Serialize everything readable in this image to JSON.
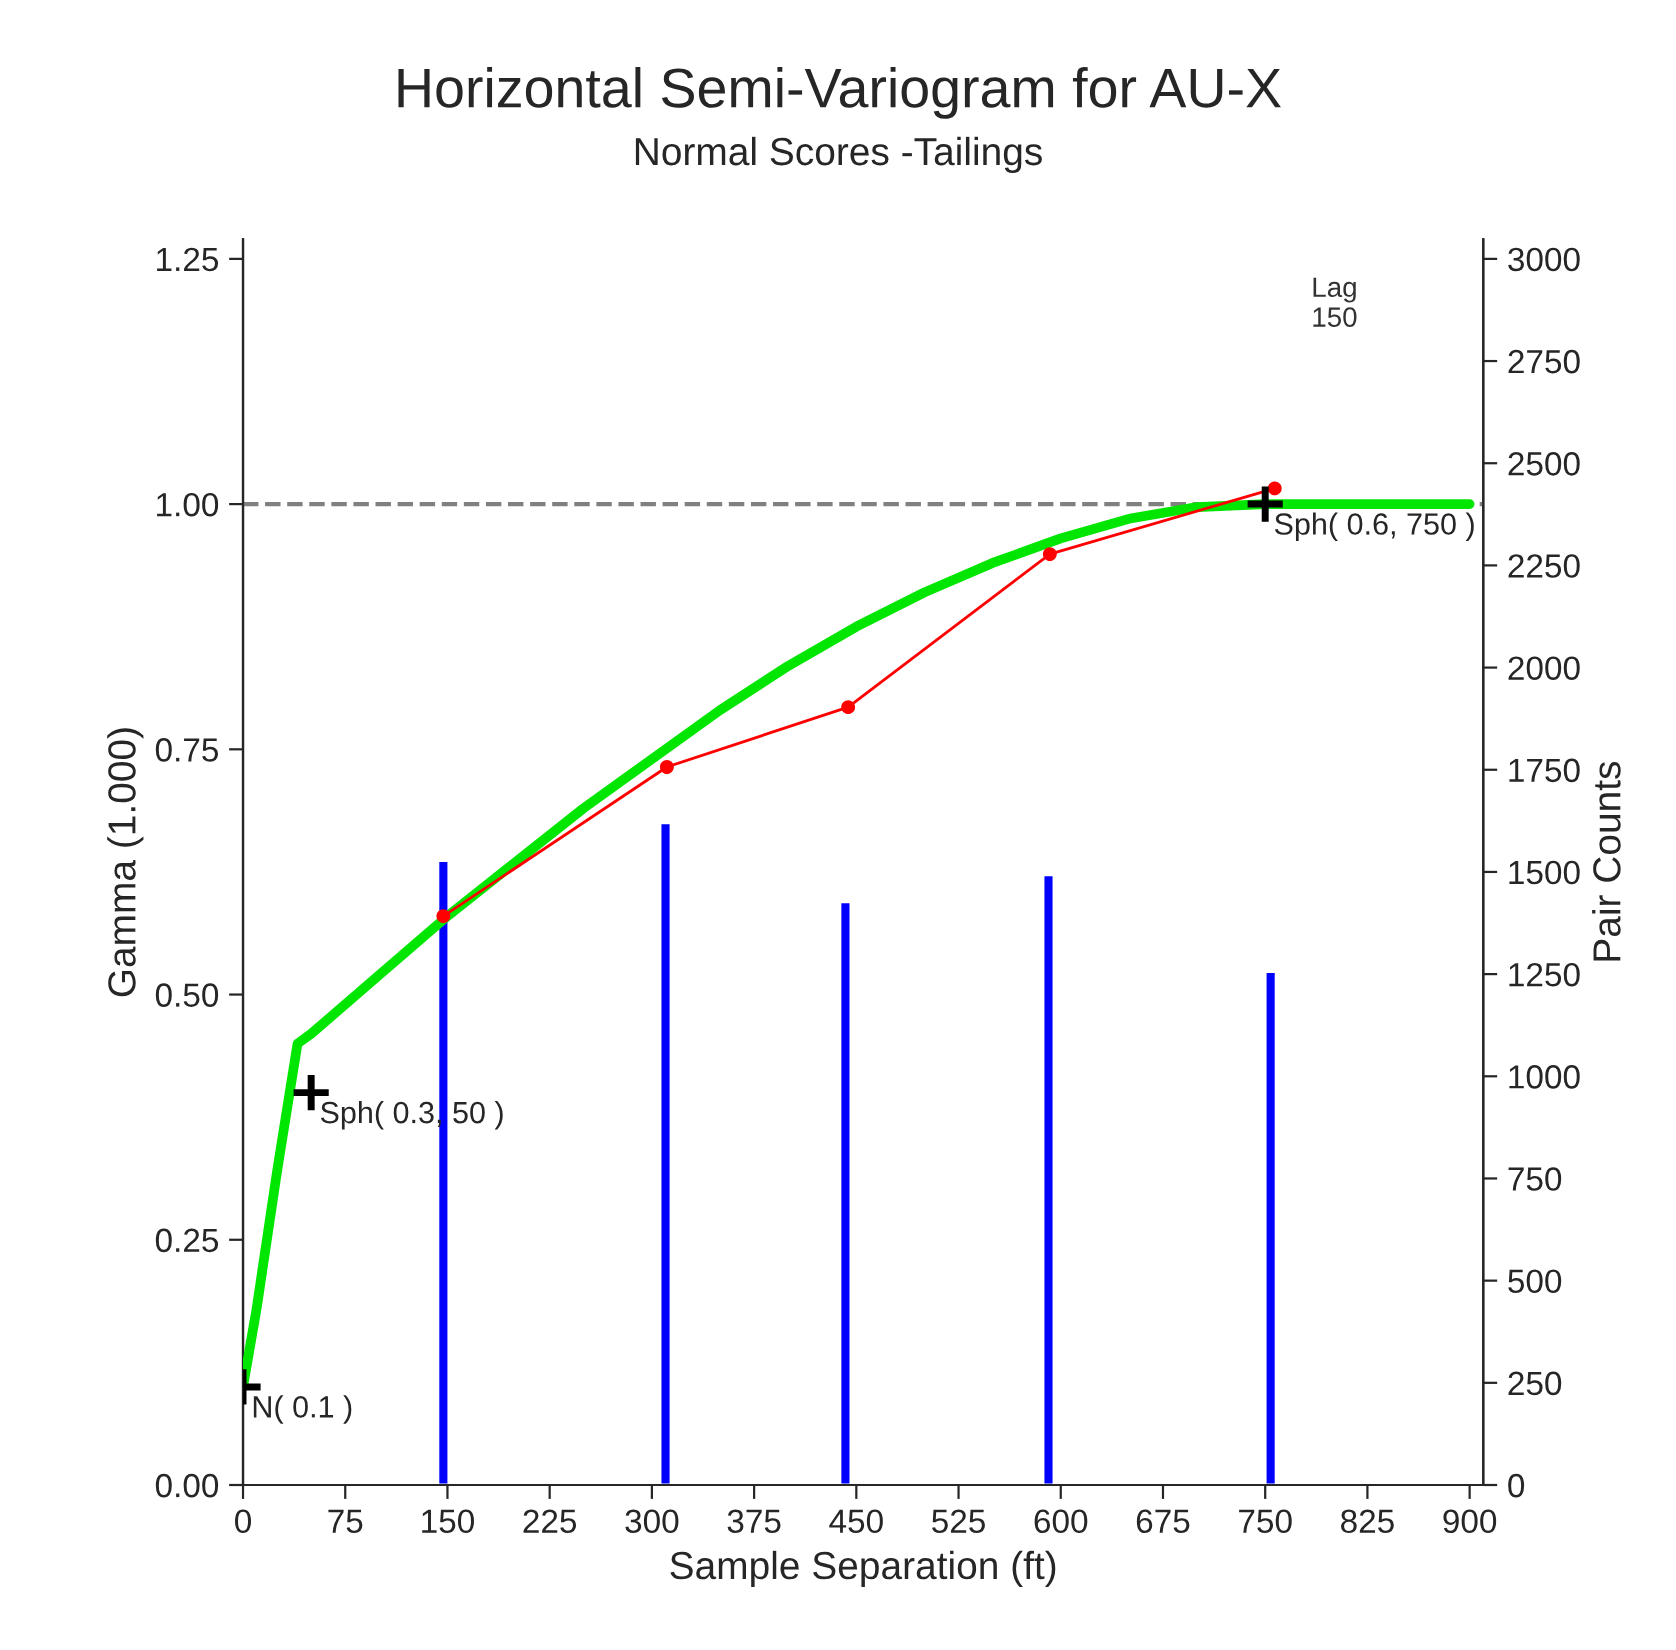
{
  "chart_data": {
    "type": "line",
    "title": "Horizontal Semi-Variogram for AU-X",
    "subtitle": "Normal Scores -Tailings",
    "xlabel": "Sample Separation (ft)",
    "ylabel": "Gamma (1.000)",
    "y2label": "Pair Counts",
    "xlim": [
      0,
      910
    ],
    "xticks": [
      0,
      75,
      150,
      225,
      300,
      375,
      450,
      525,
      600,
      675,
      750,
      825,
      900
    ],
    "ylim": [
      0,
      1.27
    ],
    "yticks": [
      {
        "value": 0,
        "label": "0.00"
      },
      {
        "value": 0.25,
        "label": "0.25"
      },
      {
        "value": 0.5,
        "label": "0.50"
      },
      {
        "value": 0.75,
        "label": "0.75"
      },
      {
        "value": 1.0,
        "label": "1.00"
      },
      {
        "value": 1.25,
        "label": "1.25"
      }
    ],
    "y2lim": [
      0,
      3048
    ],
    "y2ticks": [
      0,
      250,
      500,
      750,
      1000,
      1250,
      1500,
      1750,
      2000,
      2250,
      2500,
      2750,
      3000
    ],
    "grid": false,
    "legend": false,
    "ref_lines": [
      {
        "axis": "y",
        "value": 1.0,
        "color": "#808080",
        "line_style": "dashed"
      }
    ],
    "series": [
      {
        "type": "bar",
        "axis": "y2",
        "color": "#0000ff",
        "x": [
          147,
          310,
          442,
          591,
          754
        ],
        "values": [
          1528,
          1620,
          1427,
          1493,
          1256
        ]
      },
      {
        "type": "line",
        "color": "#ff0000",
        "marker": "circle",
        "line_style": "solid",
        "x": [
          147,
          311,
          444,
          592,
          757
        ],
        "values": [
          0.58,
          0.732,
          0.793,
          0.949,
          1.016
        ]
      },
      {
        "color": "#00e600",
        "marker": "none",
        "line_style": "solid",
        "x": [
          0,
          10,
          25,
          40,
          50,
          100,
          150,
          200,
          250,
          300,
          350,
          400,
          450,
          500,
          550,
          600,
          650,
          700,
          750,
          900
        ],
        "values": [
          0.1,
          0.18,
          0.32,
          0.45,
          0.46,
          0.52,
          0.58,
          0.635,
          0.69,
          0.74,
          0.79,
          0.835,
          0.875,
          0.91,
          0.94,
          0.965,
          0.985,
          0.997,
          1.0,
          1.0
        ]
      },
      {
        "type": "scatter",
        "color": "#000000",
        "marker": "cross",
        "x": [
          0,
          50,
          750
        ],
        "values": [
          0.1,
          0.4,
          1.0
        ]
      }
    ],
    "annotations": [
      {
        "text": "N( 0.1 )",
        "x": 0,
        "y": 0.1
      },
      {
        "text": "Sph( 0.3, 50 )",
        "x": 50,
        "y": 0.4
      },
      {
        "text": "Sph( 0.6, 750 )",
        "x": 750,
        "y": 1.0
      },
      "Lag\n150"
    ]
  }
}
